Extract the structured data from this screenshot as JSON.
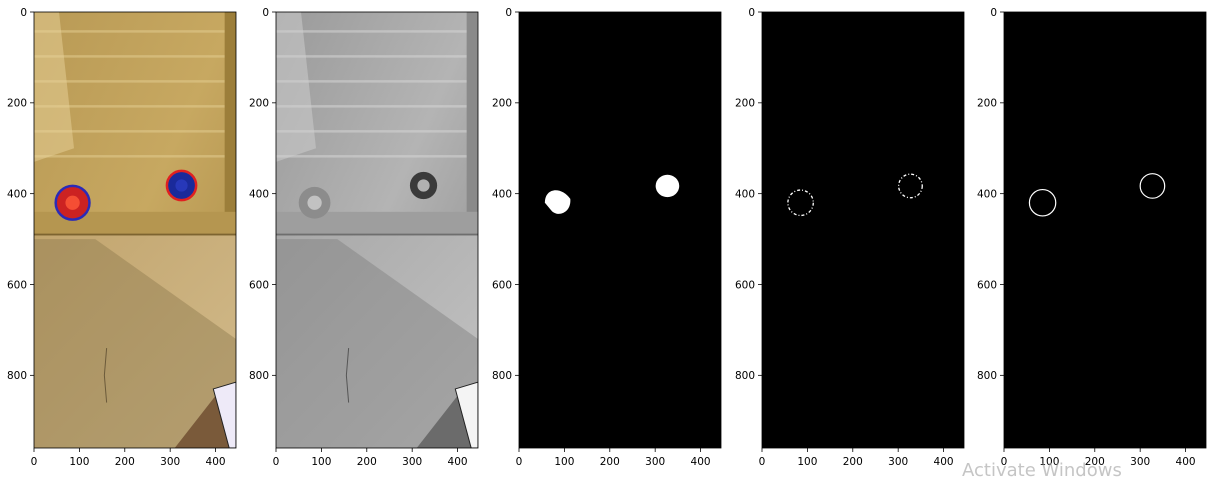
{
  "figure": {
    "panel_titles": [
      "",
      "",
      "",
      "",
      ""
    ],
    "panels": [
      {
        "name": "original-color-image",
        "content": "photo"
      },
      {
        "name": "grayscale-image",
        "content": "photo-gray"
      },
      {
        "name": "threshold-mask",
        "content": "mask"
      },
      {
        "name": "edge-image",
        "content": "edges"
      },
      {
        "name": "contour-image",
        "content": "contours"
      }
    ]
  },
  "chart_data": [
    {
      "type": "image",
      "title": "",
      "xlim": [
        0,
        445
      ],
      "ylim": [
        960,
        0
      ],
      "xticks": [
        0,
        100,
        200,
        300,
        400
      ],
      "yticks": [
        0,
        200,
        400,
        600,
        800
      ],
      "objects": [
        {
          "label": "blob-left",
          "cx": 85,
          "cy": 420,
          "r": 35,
          "fill": "#cc2222",
          "ring": "#2a2ab8"
        },
        {
          "label": "blob-right",
          "cx": 325,
          "cy": 382,
          "r": 30,
          "fill": "#1a2a9a",
          "ring": "#e02020"
        }
      ]
    },
    {
      "type": "image",
      "title": "",
      "xlim": [
        0,
        445
      ],
      "ylim": [
        960,
        0
      ],
      "xticks": [
        0,
        100,
        200,
        300,
        400
      ],
      "yticks": [
        0,
        200,
        400,
        600,
        800
      ]
    },
    {
      "type": "image",
      "title": "",
      "xlim": [
        0,
        445
      ],
      "ylim": [
        960,
        0
      ],
      "xticks": [
        0,
        100,
        200,
        300,
        400
      ],
      "yticks": [
        0,
        200,
        400,
        600,
        800
      ],
      "objects": [
        {
          "label": "mask-left",
          "cx": 85,
          "cy": 420,
          "r": 28
        },
        {
          "label": "mask-right",
          "cx": 327,
          "cy": 383,
          "r": 26
        }
      ]
    },
    {
      "type": "image",
      "title": "",
      "xlim": [
        0,
        445
      ],
      "ylim": [
        960,
        0
      ],
      "xticks": [
        0,
        100,
        200,
        300,
        400
      ],
      "yticks": [
        0,
        200,
        400,
        600,
        800
      ],
      "objects": [
        {
          "label": "edge-left",
          "cx": 85,
          "cy": 420,
          "r": 28
        },
        {
          "label": "edge-right",
          "cx": 327,
          "cy": 383,
          "r": 26
        }
      ]
    },
    {
      "type": "image",
      "title": "",
      "xlim": [
        0,
        445
      ],
      "ylim": [
        960,
        0
      ],
      "xticks": [
        0,
        100,
        200,
        300,
        400
      ],
      "yticks": [
        0,
        200,
        400,
        600,
        800
      ],
      "objects": [
        {
          "label": "contour-left",
          "cx": 85,
          "cy": 420,
          "r": 29
        },
        {
          "label": "contour-right",
          "cx": 327,
          "cy": 383,
          "r": 27
        }
      ]
    }
  ],
  "watermark": "Activate Windows"
}
